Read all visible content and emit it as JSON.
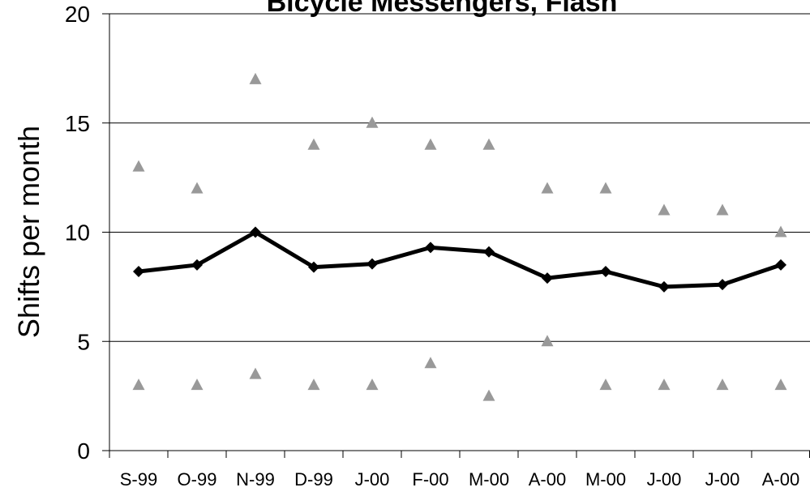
{
  "chart_data": {
    "type": "line",
    "title": "Bicycle Messengers, Flash",
    "xlabel": "",
    "ylabel": "Shifts per month",
    "categories": [
      "S-99",
      "O-99",
      "N-99",
      "D-99",
      "J-00",
      "F-00",
      "M-00",
      "A-00",
      "M-00",
      "J-00",
      "J-00",
      "A-00"
    ],
    "ylim": [
      0,
      20
    ],
    "yticks": [
      "0",
      "5",
      "10",
      "15",
      "20"
    ],
    "grid": true,
    "legend": "none",
    "series": [
      {
        "values": [
          8.2,
          8.5,
          10.0,
          8.4,
          8.55,
          9.3,
          9.1,
          7.9,
          8.2,
          7.5,
          7.6,
          8.5
        ],
        "style": "line-diamond",
        "color": "#000000"
      },
      {
        "values": [
          13,
          12,
          17,
          14,
          15,
          14,
          14,
          12,
          12,
          11,
          11,
          10
        ],
        "style": "triangle-marker",
        "color": "#999999"
      },
      {
        "values": [
          3,
          3,
          3.5,
          3,
          3,
          4,
          2.5,
          5,
          3,
          3,
          3,
          3
        ],
        "style": "triangle-marker",
        "color": "#999999"
      }
    ]
  }
}
